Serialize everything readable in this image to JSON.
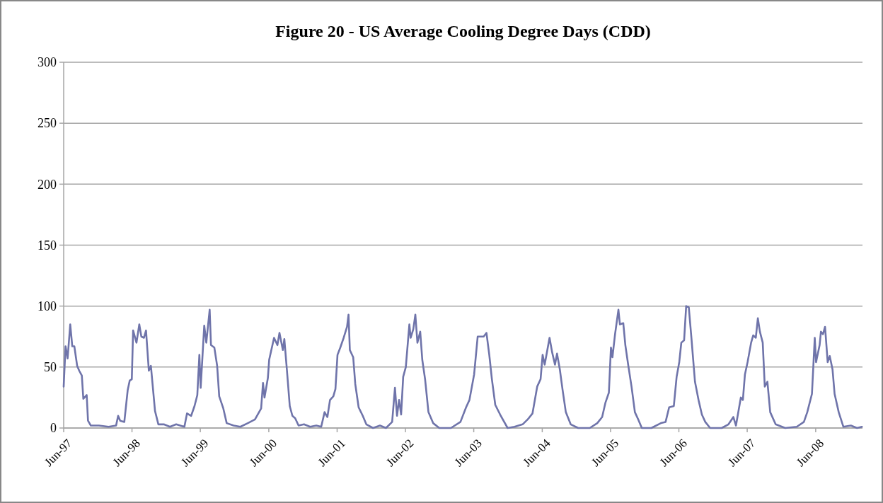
{
  "chart_data": {
    "type": "line",
    "title": "Figure 20 - US Average Cooling Degree Days (CDD)",
    "series": [
      {
        "color": "#6f74aa",
        "x": [
          "1997-06-01",
          "1997-06-11",
          "1997-06-22",
          "1997-07-06",
          "1997-07-17",
          "1997-07-28",
          "1997-08-12",
          "1997-08-23",
          "1997-09-06",
          "1997-09-14",
          "1997-10-02",
          "1997-10-09",
          "1997-10-24",
          "1997-12-06",
          "1998-01-27",
          "1998-03-08",
          "1998-03-19",
          "1998-03-30",
          "1998-04-21",
          "1998-05-09",
          "1998-05-20",
          "1998-05-31",
          "1998-06-07",
          "1998-06-25",
          "1998-07-10",
          "1998-07-21",
          "1998-08-04",
          "1998-08-15",
          "1998-08-30",
          "1998-09-10",
          "1998-10-02",
          "1998-10-20",
          "1998-11-18",
          "1998-12-21",
          "1999-01-23",
          "1999-03-08",
          "1999-03-22",
          "1999-04-13",
          "1999-05-01",
          "1999-05-16",
          "1999-05-27",
          "1999-06-03",
          "1999-06-22",
          "1999-07-03",
          "1999-07-21",
          "1999-07-28",
          "1999-08-15",
          "1999-08-30",
          "1999-09-10",
          "1999-10-02",
          "1999-10-20",
          "1999-11-26",
          "2000-01-01",
          "2000-02-10",
          "2000-03-19",
          "2000-04-21",
          "2000-05-01",
          "2000-05-09",
          "2000-05-27",
          "2000-06-03",
          "2000-06-29",
          "2000-07-17",
          "2000-07-28",
          "2000-08-15",
          "2000-08-23",
          "2000-09-06",
          "2000-09-21",
          "2000-10-05",
          "2000-10-20",
          "2000-11-07",
          "2000-12-06",
          "2001-01-08",
          "2001-02-10",
          "2001-03-08",
          "2001-03-26",
          "2001-04-10",
          "2001-04-24",
          "2001-05-12",
          "2001-05-23",
          "2001-06-03",
          "2001-06-18",
          "2001-07-06",
          "2001-07-24",
          "2001-08-01",
          "2001-08-08",
          "2001-08-26",
          "2001-09-06",
          "2001-09-24",
          "2001-10-16",
          "2001-11-04",
          "2001-12-10",
          "2002-01-16",
          "2002-02-17",
          "2002-03-22",
          "2002-04-06",
          "2002-04-17",
          "2002-04-28",
          "2002-05-09",
          "2002-05-20",
          "2002-06-03",
          "2002-06-22",
          "2002-06-29",
          "2002-07-13",
          "2002-07-24",
          "2002-08-04",
          "2002-08-19",
          "2002-08-30",
          "2002-09-14",
          "2002-10-02",
          "2002-10-27",
          "2002-11-29",
          "2003-01-30",
          "2003-03-22",
          "2003-04-21",
          "2003-05-09",
          "2003-06-03",
          "2003-06-22",
          "2003-07-24",
          "2003-08-08",
          "2003-08-23",
          "2003-09-06",
          "2003-09-24",
          "2003-10-20",
          "2003-11-29",
          "2004-01-05",
          "2004-02-17",
          "2004-03-15",
          "2004-04-10",
          "2004-05-05",
          "2004-05-23",
          "2004-06-03",
          "2004-06-14",
          "2004-07-10",
          "2004-07-24",
          "2004-08-08",
          "2004-08-19",
          "2004-09-03",
          "2004-09-17",
          "2004-10-05",
          "2004-10-31",
          "2004-12-10",
          "2005-02-10",
          "2005-03-22",
          "2005-04-17",
          "2005-05-05",
          "2005-05-23",
          "2005-06-03",
          "2005-06-11",
          "2005-06-25",
          "2005-07-13",
          "2005-07-21",
          "2005-08-08",
          "2005-08-19",
          "2005-09-03",
          "2005-09-21",
          "2005-10-09",
          "2005-10-27",
          "2005-11-15",
          "2006-01-05",
          "2006-02-25",
          "2006-03-22",
          "2006-04-10",
          "2006-05-05",
          "2006-05-20",
          "2006-06-03",
          "2006-06-14",
          "2006-06-29",
          "2006-07-10",
          "2006-07-24",
          "2006-08-08",
          "2006-08-26",
          "2006-09-14",
          "2006-10-02",
          "2006-10-20",
          "2006-11-15",
          "2007-01-16",
          "2007-02-21",
          "2007-03-19",
          "2007-04-02",
          "2007-04-28",
          "2007-05-09",
          "2007-05-20",
          "2007-06-03",
          "2007-06-22",
          "2007-07-03",
          "2007-07-17",
          "2007-07-28",
          "2007-08-08",
          "2007-08-23",
          "2007-09-03",
          "2007-09-17",
          "2007-10-02",
          "2007-10-31",
          "2007-12-21",
          "2008-02-21",
          "2008-03-30",
          "2008-04-17",
          "2008-05-12",
          "2008-05-27",
          "2008-06-03",
          "2008-06-22",
          "2008-06-29",
          "2008-07-10",
          "2008-07-21",
          "2008-08-04",
          "2008-08-15",
          "2008-08-30",
          "2008-09-10",
          "2008-10-02",
          "2008-10-27",
          "2008-12-06",
          "2009-01-08",
          "2009-02-03"
        ],
        "values": [
          34,
          67,
          57,
          85,
          67,
          67,
          51,
          47,
          43,
          24,
          27,
          6,
          2,
          2,
          1,
          2,
          10,
          6,
          5,
          31,
          39,
          40,
          80,
          70,
          85,
          75,
          74,
          80,
          47,
          51,
          14,
          3,
          3,
          1,
          3,
          1,
          12,
          10,
          18,
          27,
          60,
          33,
          84,
          70,
          97,
          68,
          66,
          51,
          26,
          16,
          4,
          2,
          1,
          4,
          7,
          16,
          37,
          25,
          41,
          56,
          74,
          68,
          78,
          64,
          73,
          47,
          18,
          10,
          8,
          2,
          3,
          1,
          2,
          1,
          13,
          9,
          23,
          26,
          32,
          60,
          66,
          74,
          83,
          93,
          64,
          58,
          36,
          17,
          10,
          3,
          0,
          2,
          0,
          5,
          33,
          10,
          23,
          11,
          42,
          50,
          85,
          74,
          81,
          93,
          70,
          79,
          56,
          40,
          13,
          4,
          0,
          0,
          5,
          17,
          23,
          44,
          75,
          75,
          78,
          60,
          40,
          19,
          11,
          0,
          1,
          3,
          7,
          12,
          34,
          40,
          60,
          52,
          74,
          62,
          52,
          61,
          48,
          32,
          13,
          3,
          0,
          0,
          4,
          9,
          21,
          29,
          66,
          58,
          77,
          97,
          85,
          86,
          68,
          52,
          34,
          13,
          7,
          0,
          0,
          4,
          5,
          17,
          18,
          42,
          54,
          70,
          72,
          100,
          99,
          72,
          38,
          23,
          11,
          5,
          0,
          0,
          3,
          9,
          2,
          25,
          23,
          44,
          54,
          70,
          76,
          74,
          90,
          79,
          70,
          34,
          38,
          13,
          3,
          0,
          1,
          5,
          13,
          28,
          74,
          54,
          68,
          79,
          77,
          83,
          54,
          59,
          48,
          28,
          13,
          1,
          2,
          0,
          1
        ]
      }
    ],
    "xlim": [
      "1997-06-01",
      "2009-02-06"
    ],
    "xticks": [
      {
        "value": "1997-06-01",
        "label": "Jun-97"
      },
      {
        "value": "1998-06-01",
        "label": "Jun-98"
      },
      {
        "value": "1999-06-01",
        "label": "Jun-99"
      },
      {
        "value": "2000-06-01",
        "label": "Jun-00"
      },
      {
        "value": "2001-06-01",
        "label": "Jun-01"
      },
      {
        "value": "2002-06-01",
        "label": "Jun-02"
      },
      {
        "value": "2003-06-01",
        "label": "Jun-03"
      },
      {
        "value": "2004-06-01",
        "label": "Jun-04"
      },
      {
        "value": "2005-06-01",
        "label": "Jun-05"
      },
      {
        "value": "2006-06-01",
        "label": "Jun-06"
      },
      {
        "value": "2007-06-01",
        "label": "Jun-07"
      },
      {
        "value": "2008-06-01",
        "label": "Jun-08"
      }
    ],
    "ylim": [
      0,
      300
    ],
    "yticks": [
      0,
      50,
      100,
      150,
      200,
      250,
      300
    ],
    "grid": "y",
    "marker": "none",
    "line_style": "solid"
  }
}
